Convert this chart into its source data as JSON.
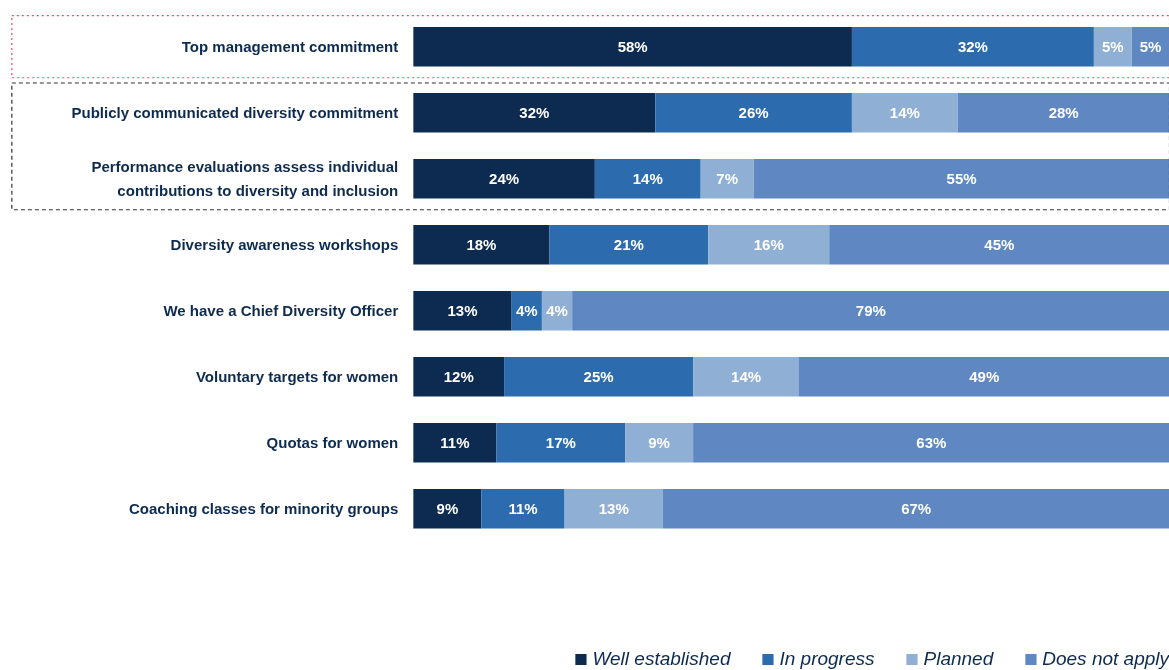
{
  "chart_data": {
    "type": "bar",
    "orientation": "horizontal",
    "stacked": true,
    "legend": "bottom",
    "grid": false,
    "categories": [
      "Top management commitment",
      "Publicly communicated diversity commitment",
      "Performance evaluations assess individual\ncontributions to diversity and inclusion",
      "Diversity awareness workshops",
      "We have a Chief Diversity Officer",
      "Voluntary targets for women",
      "Quotas for women",
      "Coaching classes for minority groups"
    ],
    "series": [
      {
        "name": "Well established",
        "color": "#0d2a50",
        "values": [
          58,
          32,
          24,
          18,
          13,
          12,
          11,
          9
        ],
        "value_labels": [
          "58%",
          "32%",
          "24%",
          "18%",
          "13%",
          "12%",
          "11%",
          "9%"
        ]
      },
      {
        "name": "In progress",
        "color": "#2c6cae",
        "values": [
          32,
          26,
          14,
          21,
          4,
          25,
          17,
          11
        ],
        "value_labels": [
          "32%",
          "26%",
          "14%",
          "21%",
          "4%",
          "25%",
          "17%",
          "11%"
        ]
      },
      {
        "name": "Planned",
        "color": "#90afd5",
        "values": [
          5,
          14,
          7,
          16,
          4,
          14,
          9,
          13
        ],
        "value_labels": [
          "5%",
          "14%",
          "7%",
          "16%",
          "4%",
          "14%",
          "9%",
          "13%"
        ]
      },
      {
        "name": "Does not apply",
        "color": "#5f88c3",
        "values": [
          5,
          28,
          55,
          45,
          79,
          49,
          63,
          67
        ],
        "value_labels": [
          "5%",
          "28%",
          "55%",
          "45%",
          "79%",
          "49%",
          "63%",
          "67%"
        ]
      }
    ]
  }
}
